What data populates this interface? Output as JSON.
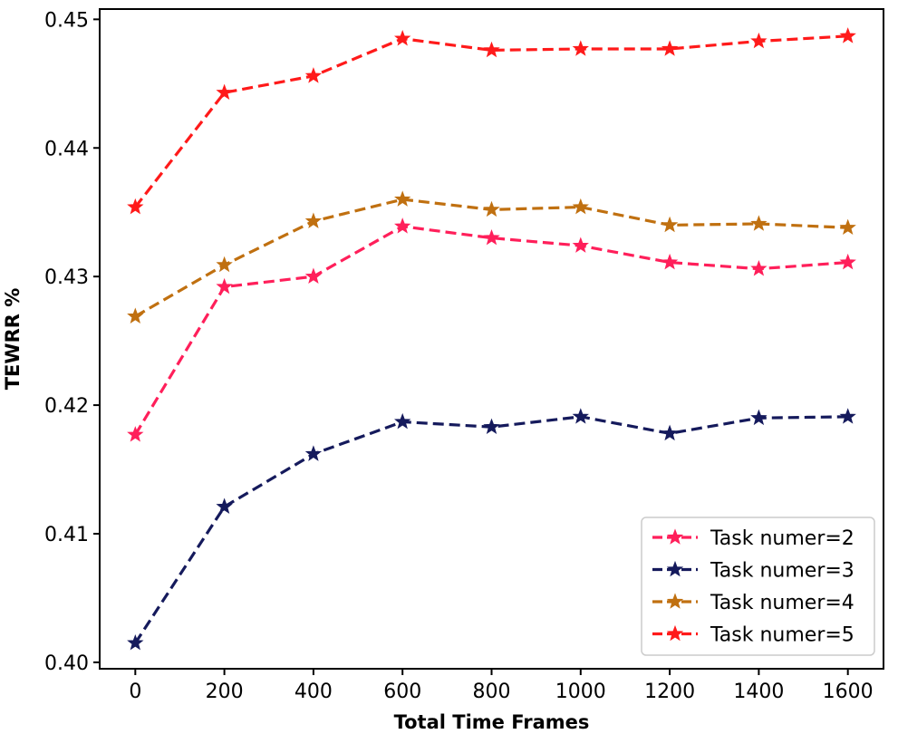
{
  "chart_data": {
    "type": "line",
    "title": "",
    "xlabel": "Total Time Frames",
    "ylabel": "TEWRR %",
    "x": [
      0,
      200,
      400,
      600,
      800,
      1000,
      1200,
      1400,
      1600
    ],
    "xticks": [
      "0",
      "200",
      "400",
      "600",
      "800",
      "1000",
      "1200",
      "1400",
      "1600"
    ],
    "yticks": [
      "0.40",
      "0.41",
      "0.42",
      "0.43",
      "0.44",
      "0.45"
    ],
    "ytick_values": [
      0.4,
      0.41,
      0.42,
      0.43,
      0.44,
      0.45
    ],
    "xlim": [
      -80,
      1680
    ],
    "ylim": [
      0.3995,
      0.4508
    ],
    "grid": false,
    "legend_position": "bottom-right",
    "series": [
      {
        "name": "Task numer=2",
        "color": "#ff1f5a",
        "marker": "star",
        "linestyle": "dashed",
        "values": [
          0.4177,
          0.4292,
          0.43,
          0.4339,
          0.433,
          0.4324,
          0.4311,
          0.4306,
          0.4311
        ]
      },
      {
        "name": "Task numer=3",
        "color": "#151a5c",
        "marker": "star",
        "linestyle": "dashed",
        "values": [
          0.4015,
          0.4121,
          0.4162,
          0.4187,
          0.4183,
          0.4191,
          0.4178,
          0.419,
          0.4191
        ]
      },
      {
        "name": "Task numer=4",
        "color": "#c07010",
        "marker": "star",
        "linestyle": "dashed",
        "values": [
          0.4269,
          0.4309,
          0.4343,
          0.436,
          0.4352,
          0.4354,
          0.434,
          0.4341,
          0.4338
        ]
      },
      {
        "name": "Task numer=5",
        "color": "#ff1a1a",
        "marker": "star",
        "linestyle": "dashed",
        "values": [
          0.4354,
          0.4443,
          0.4456,
          0.4485,
          0.4476,
          0.4477,
          0.4477,
          0.4483,
          0.4487
        ]
      }
    ]
  }
}
